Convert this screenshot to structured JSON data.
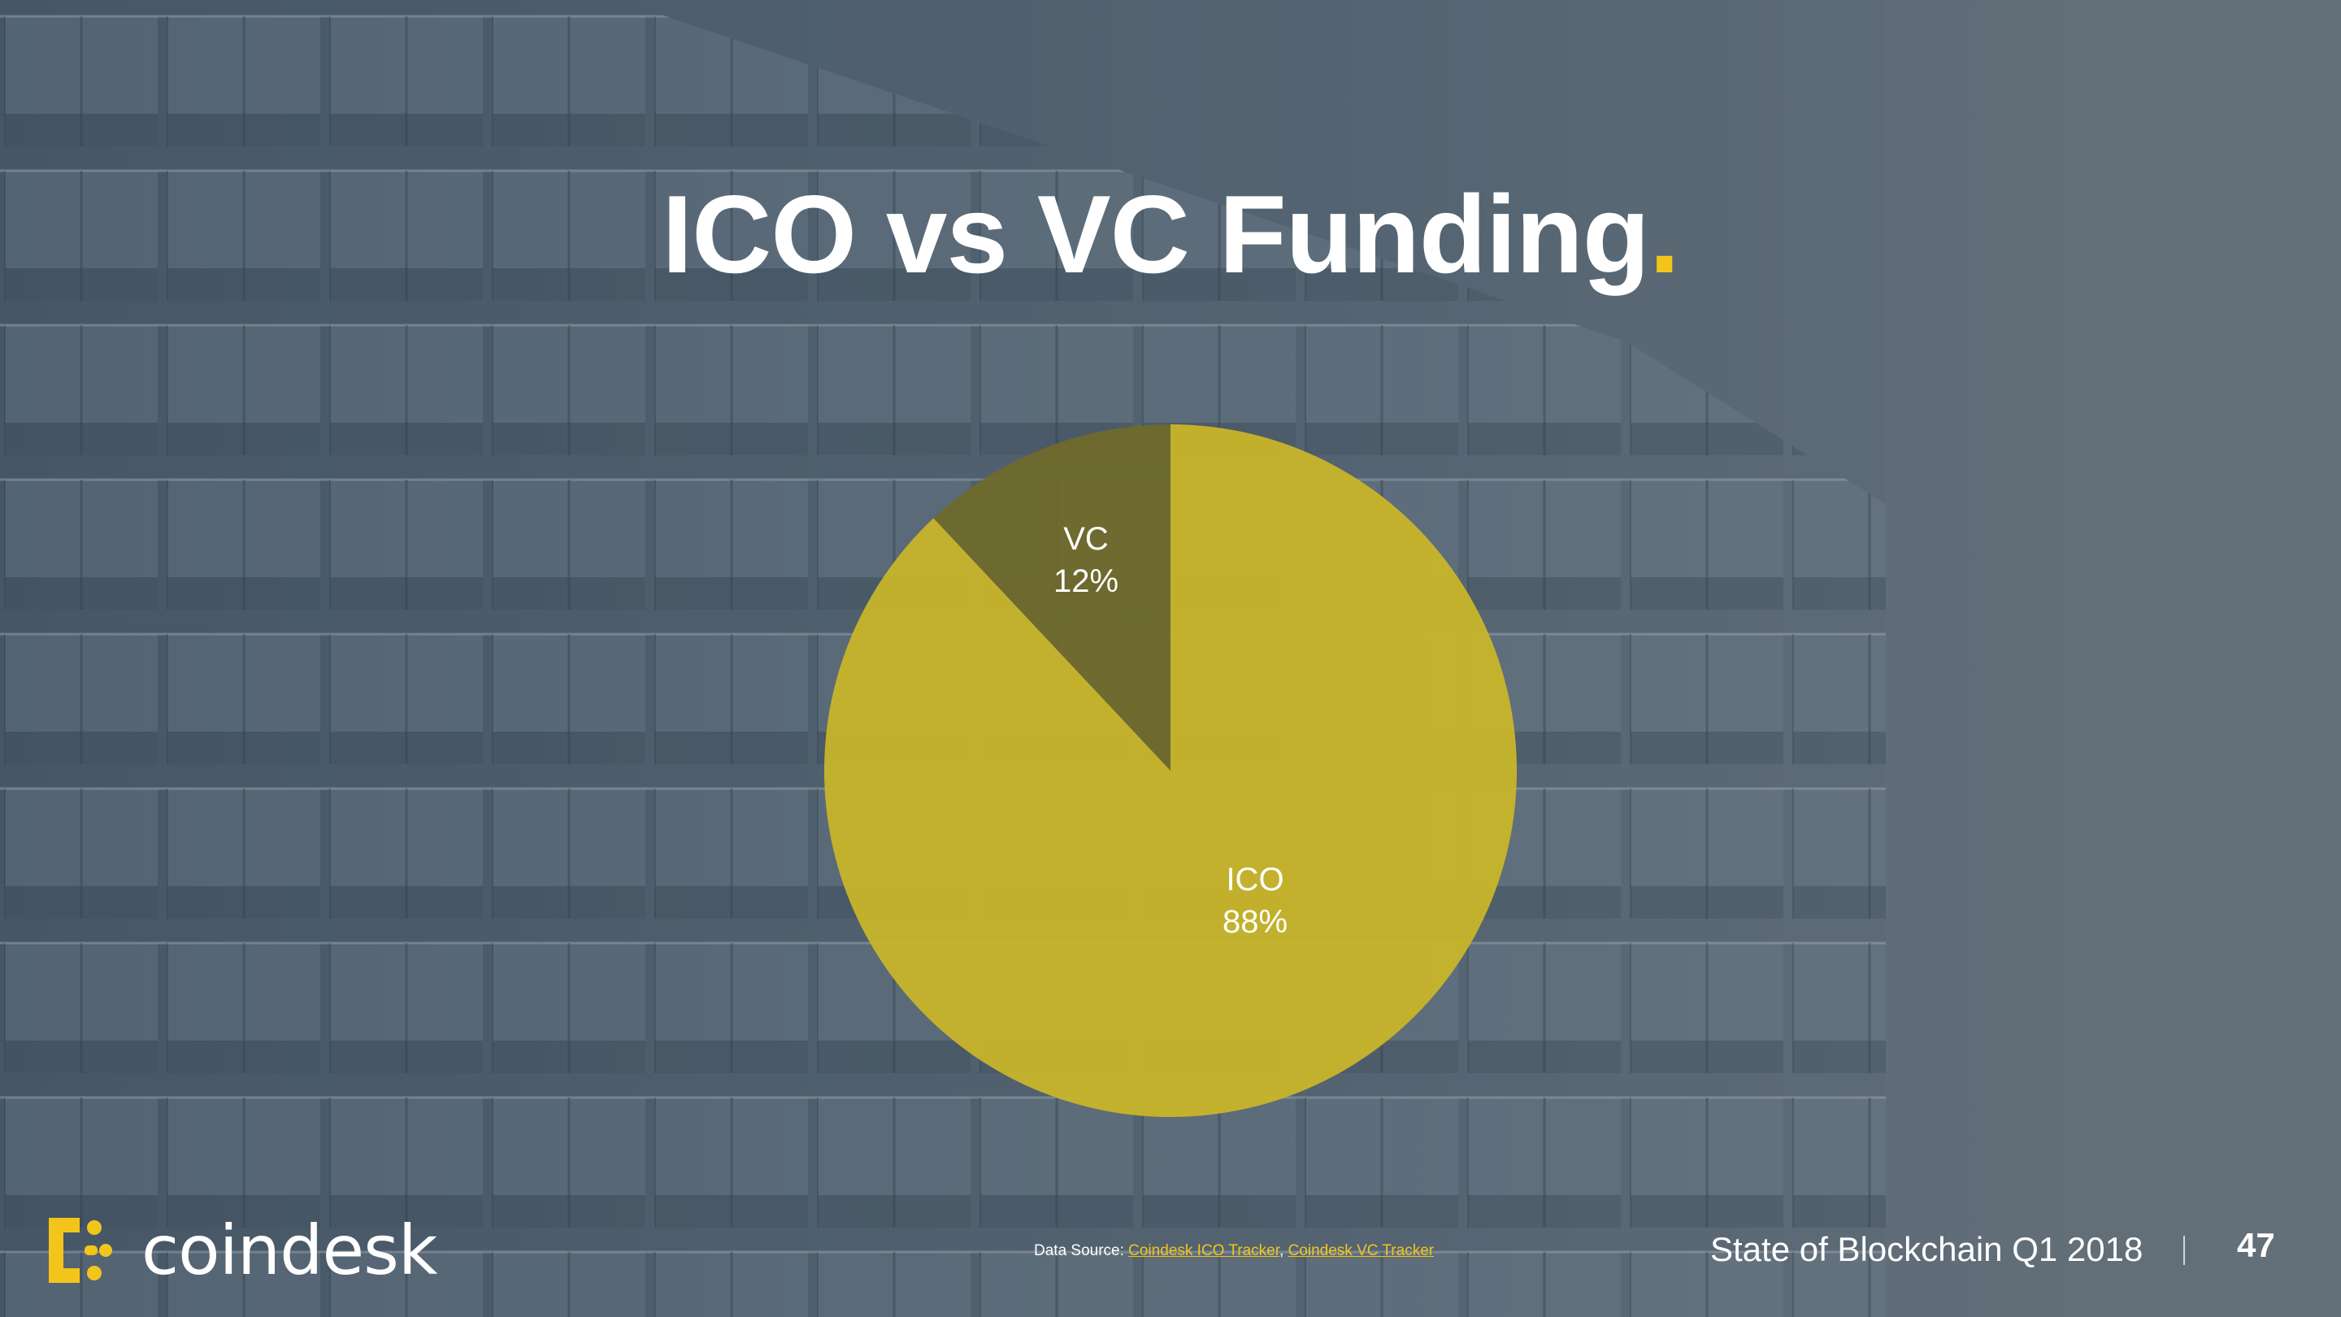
{
  "slide": {
    "title": "ICO vs VC Funding",
    "title_dot": ".",
    "footer_title": "State of Blockchain Q1 2018",
    "page_number": "47"
  },
  "source": {
    "prefix": "Data Source: ",
    "link1": "Coindesk ICO Tracker",
    "separator": ", ",
    "link2": "Coindesk VC Tracker"
  },
  "logo": {
    "text": "coindesk"
  },
  "colors": {
    "accent": "#f3c51b",
    "ico_slice": "#c8b52a",
    "vc_slice": "#6f6a2c"
  },
  "chart_data": {
    "type": "pie",
    "title": "",
    "slices": [
      {
        "name": "VC",
        "value": 12,
        "label": "12%"
      },
      {
        "name": "ICO",
        "value": 88,
        "label": "88%"
      }
    ]
  }
}
